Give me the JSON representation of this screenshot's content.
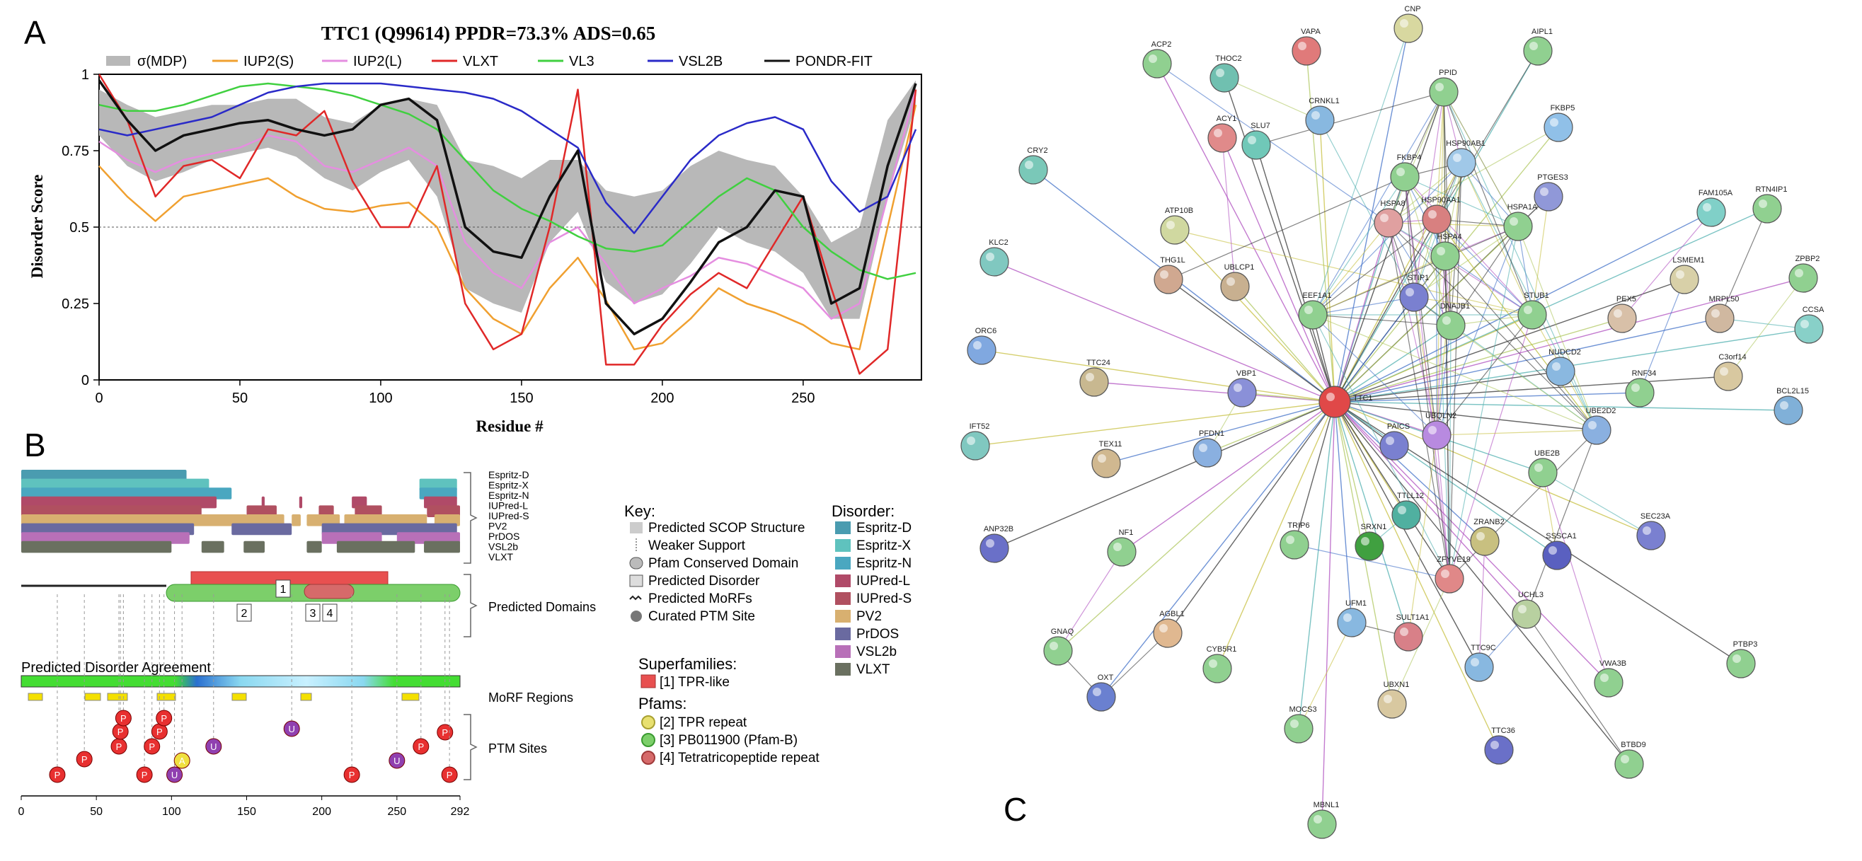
{
  "panels": {
    "a": "A",
    "b": "B",
    "c": "C"
  },
  "chart_a": {
    "title": "TTC1 (Q99614) PPDR=73.3% ADS=0.65",
    "xlabel": "Residue #",
    "ylabel": "Disorder Score",
    "xticks": [
      "0",
      "50",
      "100",
      "150",
      "200",
      "250"
    ],
    "yticks": [
      "0",
      "0.25",
      "0.5",
      "0.75",
      "1"
    ],
    "legend": [
      "σ(MDP)",
      "IUP2(S)",
      "IUP2(L)",
      "VLXT",
      "VL3",
      "VSL2B",
      "PONDR-FIT"
    ]
  },
  "chart_data": {
    "type": "line",
    "title": "TTC1 (Q99614) PPDR=73.3% ADS=0.65",
    "xlabel": "Residue #",
    "ylabel": "Disorder Score",
    "xlim": [
      0,
      292
    ],
    "ylim": [
      0,
      1
    ],
    "threshold": 0.5,
    "x": [
      0,
      10,
      20,
      30,
      40,
      50,
      60,
      70,
      80,
      90,
      100,
      110,
      120,
      130,
      140,
      150,
      160,
      170,
      180,
      190,
      200,
      210,
      220,
      230,
      240,
      250,
      260,
      270,
      280,
      290
    ],
    "series": [
      {
        "name": "σ(MDP)",
        "color": "#b8b8b8",
        "lower": [
          0.8,
          0.7,
          0.65,
          0.68,
          0.72,
          0.74,
          0.76,
          0.73,
          0.66,
          0.62,
          0.68,
          0.72,
          0.6,
          0.3,
          0.25,
          0.22,
          0.45,
          0.55,
          0.32,
          0.25,
          0.28,
          0.38,
          0.5,
          0.45,
          0.42,
          0.35,
          0.2,
          0.2,
          0.6,
          0.9
        ],
        "upper": [
          0.95,
          0.9,
          0.86,
          0.88,
          0.9,
          0.9,
          0.92,
          0.92,
          0.86,
          0.84,
          0.9,
          0.92,
          0.9,
          0.72,
          0.7,
          0.66,
          0.72,
          0.72,
          0.62,
          0.6,
          0.62,
          0.7,
          0.75,
          0.72,
          0.7,
          0.6,
          0.45,
          0.5,
          0.85,
          0.98
        ]
      },
      {
        "name": "IUP2(S)",
        "color": "#f0a030",
        "values": [
          0.7,
          0.6,
          0.52,
          0.6,
          0.62,
          0.64,
          0.66,
          0.6,
          0.56,
          0.55,
          0.57,
          0.58,
          0.5,
          0.3,
          0.2,
          0.15,
          0.3,
          0.4,
          0.26,
          0.1,
          0.12,
          0.2,
          0.3,
          0.25,
          0.22,
          0.18,
          0.12,
          0.1,
          0.5,
          0.9
        ]
      },
      {
        "name": "IUP2(L)",
        "color": "#e58ee0",
        "values": [
          0.78,
          0.72,
          0.68,
          0.72,
          0.74,
          0.76,
          0.8,
          0.78,
          0.7,
          0.68,
          0.72,
          0.76,
          0.7,
          0.45,
          0.35,
          0.3,
          0.45,
          0.5,
          0.38,
          0.25,
          0.3,
          0.34,
          0.4,
          0.38,
          0.34,
          0.3,
          0.2,
          0.25,
          0.6,
          0.95
        ]
      },
      {
        "name": "VLXT",
        "color": "#e02828",
        "values": [
          1.0,
          0.85,
          0.6,
          0.7,
          0.72,
          0.66,
          0.82,
          0.8,
          0.88,
          0.65,
          0.5,
          0.5,
          0.7,
          0.25,
          0.1,
          0.15,
          0.5,
          0.95,
          0.05,
          0.05,
          0.18,
          0.28,
          0.35,
          0.3,
          0.45,
          0.6,
          0.3,
          0.02,
          0.1,
          0.95
        ]
      },
      {
        "name": "VL3",
        "color": "#40d040",
        "values": [
          0.9,
          0.88,
          0.88,
          0.9,
          0.93,
          0.96,
          0.97,
          0.96,
          0.95,
          0.93,
          0.9,
          0.87,
          0.82,
          0.72,
          0.62,
          0.56,
          0.52,
          0.47,
          0.43,
          0.42,
          0.44,
          0.52,
          0.6,
          0.66,
          0.62,
          0.5,
          0.42,
          0.36,
          0.33,
          0.35
        ]
      },
      {
        "name": "VSL2B",
        "color": "#2a2ac8",
        "values": [
          0.82,
          0.8,
          0.82,
          0.84,
          0.86,
          0.9,
          0.94,
          0.96,
          0.97,
          0.97,
          0.97,
          0.96,
          0.95,
          0.94,
          0.92,
          0.88,
          0.82,
          0.76,
          0.58,
          0.48,
          0.6,
          0.72,
          0.8,
          0.84,
          0.86,
          0.82,
          0.65,
          0.55,
          0.6,
          0.82
        ]
      },
      {
        "name": "PONDR-FIT",
        "color": "#111111",
        "values": [
          0.98,
          0.85,
          0.75,
          0.8,
          0.82,
          0.84,
          0.85,
          0.82,
          0.8,
          0.82,
          0.9,
          0.92,
          0.85,
          0.5,
          0.42,
          0.4,
          0.6,
          0.75,
          0.25,
          0.15,
          0.2,
          0.32,
          0.45,
          0.5,
          0.62,
          0.6,
          0.25,
          0.3,
          0.7,
          0.97
        ]
      }
    ]
  },
  "panel_b": {
    "predictors": [
      "Espritz-D",
      "Espritz-X",
      "Espritz-N",
      "IUPred-L",
      "IUPred-S",
      "PV2",
      "PrDOS",
      "VSL2b",
      "VLXT"
    ],
    "predictor_colors": [
      "#4a9cb0",
      "#5fc2be",
      "#4aa7c0",
      "#b04a68",
      "#b05060",
      "#d8b070",
      "#6a6aa0",
      "#b870b8",
      "#6a7060"
    ],
    "labels": {
      "domains": "Predicted Domains",
      "agreement": "Predicted Disorder Agreement",
      "morf": "MoRF Regions",
      "ptm": "PTM Sites"
    },
    "domain_numbers": [
      "1",
      "2",
      "3",
      "4"
    ],
    "xticks": [
      "0",
      "50",
      "100",
      "150",
      "200",
      "250",
      "292"
    ],
    "ptm_letters": {
      "P": "P",
      "U": "U",
      "A": "A"
    },
    "key": {
      "title": "Key:",
      "items": [
        "Predicted SCOP Structure",
        "Weaker Support",
        "Pfam Conserved Domain",
        "Predicted Disorder",
        "Predicted MoRFs",
        "Curated PTM Site"
      ]
    },
    "disorder_key": {
      "title": "Disorder:",
      "items": [
        "Espritz-D",
        "Espritz-X",
        "Espritz-N",
        "IUPred-L",
        "IUPred-S",
        "PV2",
        "PrDOS",
        "VSL2b",
        "VLXT"
      ]
    },
    "superfamilies": {
      "title": "Superfamilies:",
      "items": [
        "[1] TPR-like"
      ]
    },
    "pfams": {
      "title": "Pfams:",
      "items": [
        "[2] TPR repeat",
        "[3] PB011900 (Pfam-B)",
        "[4] Tetratricopeptide repeat"
      ]
    }
  },
  "network": {
    "center": "TTC1",
    "nodes": [
      "ACP2",
      "THOC2",
      "VAPA",
      "CNP",
      "AIPL1",
      "CRNKL1",
      "PPID",
      "ACY1",
      "SLU7",
      "FKBP5",
      "CRY2",
      "FKBP4",
      "HSP90AB1",
      "PTGES3",
      "HSPA8",
      "HSP90AA1",
      "HSPA1A",
      "FAM105A",
      "RTN4IP1",
      "ATP10B",
      "HSPA4",
      "KLC2",
      "THG1L",
      "UBLCP1",
      "STIP1",
      "DNAJB1",
      "STUB1",
      "LSMEM1",
      "ZPBP2",
      "EEF1A1",
      "PEX5",
      "MRPL50",
      "CCSA",
      "ORC6",
      "NUDCD2",
      "TTC24",
      "C3orf14",
      "VBP1",
      "RNF34",
      "BCL2L15",
      "IFT52",
      "PAICS",
      "UBQLN2",
      "UBE2D2",
      "PFDN1",
      "TEX11",
      "UBE2B",
      "TTLL12",
      "ANP32B",
      "NF1",
      "TRIP6",
      "SRXN1",
      "ZRANB2",
      "SSSCA1",
      "SEC23A",
      "ZFYVE19",
      "UCHL3",
      "AGBL1",
      "GNAQ",
      "UFM1",
      "SULT1A1",
      "CYB5R1",
      "TTC9C",
      "VWA3B",
      "PTBP3",
      "UBXN1",
      "OXT",
      "MOCS3",
      "TTC36",
      "BTBD9",
      "MBNL1"
    ]
  }
}
